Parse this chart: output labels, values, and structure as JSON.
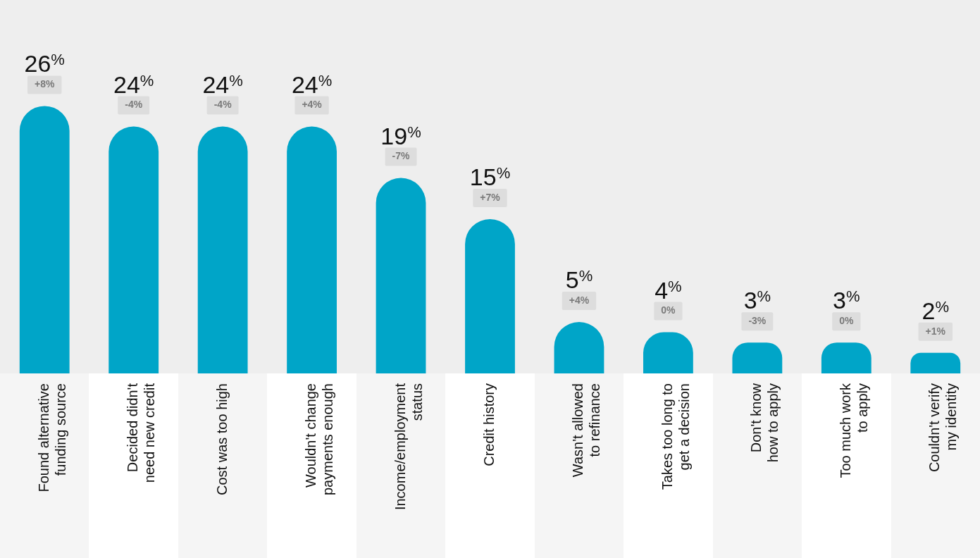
{
  "chart_data": {
    "type": "bar",
    "categories": [
      "Found alternative\nfunding source",
      "Decided didn't\nneed new credit",
      "Cost was too high",
      "Wouldn't change\npayments enough",
      "Income/employment\nstatus",
      "Credit history",
      "Wasn't allowed\nto refinance",
      "Takes too long to\nget a decision",
      "Don't know\nhow to apply",
      "Too much work\nto apply",
      "Couldn't verify\nmy identity"
    ],
    "values": [
      26,
      24,
      24,
      24,
      19,
      15,
      5,
      4,
      3,
      3,
      2
    ],
    "color": "#00a5c8",
    "tick_labels": "x",
    "grid": false,
    "legend": false,
    "value_labels": [
      "26%",
      "24%",
      "24%",
      "24%",
      "19%",
      "15%",
      "5%",
      "4%",
      "3%",
      "3%",
      "2%"
    ],
    "annotations": [
      {
        "text": "+8%",
        "x": "Found alternative\nfunding source",
        "y": 26
      },
      {
        "text": "-4%",
        "x": "Decided didn't\nneed new credit",
        "y": 24
      },
      {
        "text": "-4%",
        "x": "Cost was too high",
        "y": 24
      },
      {
        "text": "+4%",
        "x": "Wouldn't change\npayments enough",
        "y": 24
      },
      {
        "text": "-7%",
        "x": "Income/employment\nstatus",
        "y": 19
      },
      {
        "text": "+7%",
        "x": "Credit history",
        "y": 15
      },
      {
        "text": "+4%",
        "x": "Wasn't allowed\nto refinance",
        "y": 5
      },
      {
        "text": "0%",
        "x": "Takes too long to\nget a decision",
        "y": 4
      },
      {
        "text": "-3%",
        "x": "Don't know\nhow to apply",
        "y": 3
      },
      {
        "text": "0%",
        "x": "Too much work\nto apply",
        "y": 3
      },
      {
        "text": "+1%",
        "x": "Couldn't verify\nmy identity",
        "y": 2
      }
    ]
  }
}
